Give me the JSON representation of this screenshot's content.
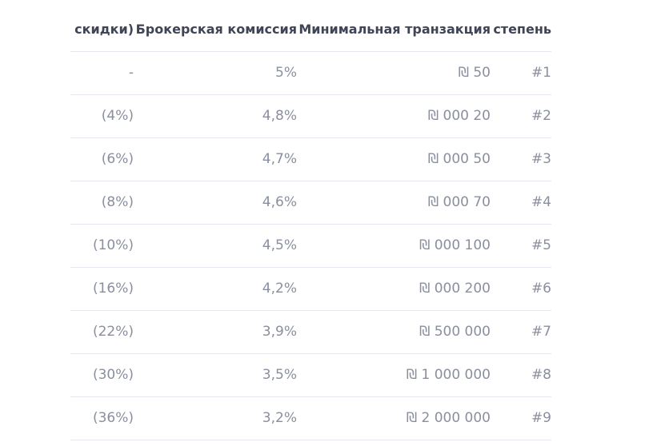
{
  "table": {
    "headers": {
      "discount": "скидки)",
      "fee": "Брокерская комиссия",
      "min": "Минимальная транзакция",
      "level": "степень"
    },
    "rows": [
      {
        "discount": "-",
        "fee": "5%",
        "min": "₪ 50",
        "level": "#1"
      },
      {
        "discount": "(4%)",
        "fee": "4,8%",
        "min": "₪ 000 20",
        "level": "#2"
      },
      {
        "discount": "(6%)",
        "fee": "4,7%",
        "min": "₪ 000 50",
        "level": "#3"
      },
      {
        "discount": "(8%)",
        "fee": "4,6%",
        "min": "₪ 000 70",
        "level": "#4"
      },
      {
        "discount": "(10%)",
        "fee": "4,5%",
        "min": "₪ 000 100",
        "level": "#5"
      },
      {
        "discount": "(16%)",
        "fee": "4,2%",
        "min": "₪ 000 200",
        "level": "#6"
      },
      {
        "discount": "(22%)",
        "fee": "3,9%",
        "min": "₪ 500 000",
        "level": "#7"
      },
      {
        "discount": "(30%)",
        "fee": "3,5%",
        "min": "₪ 1 000 000",
        "level": "#8"
      },
      {
        "discount": "(36%)",
        "fee": "3,2%",
        "min": "₪ 2 000 000",
        "level": "#9"
      }
    ]
  }
}
